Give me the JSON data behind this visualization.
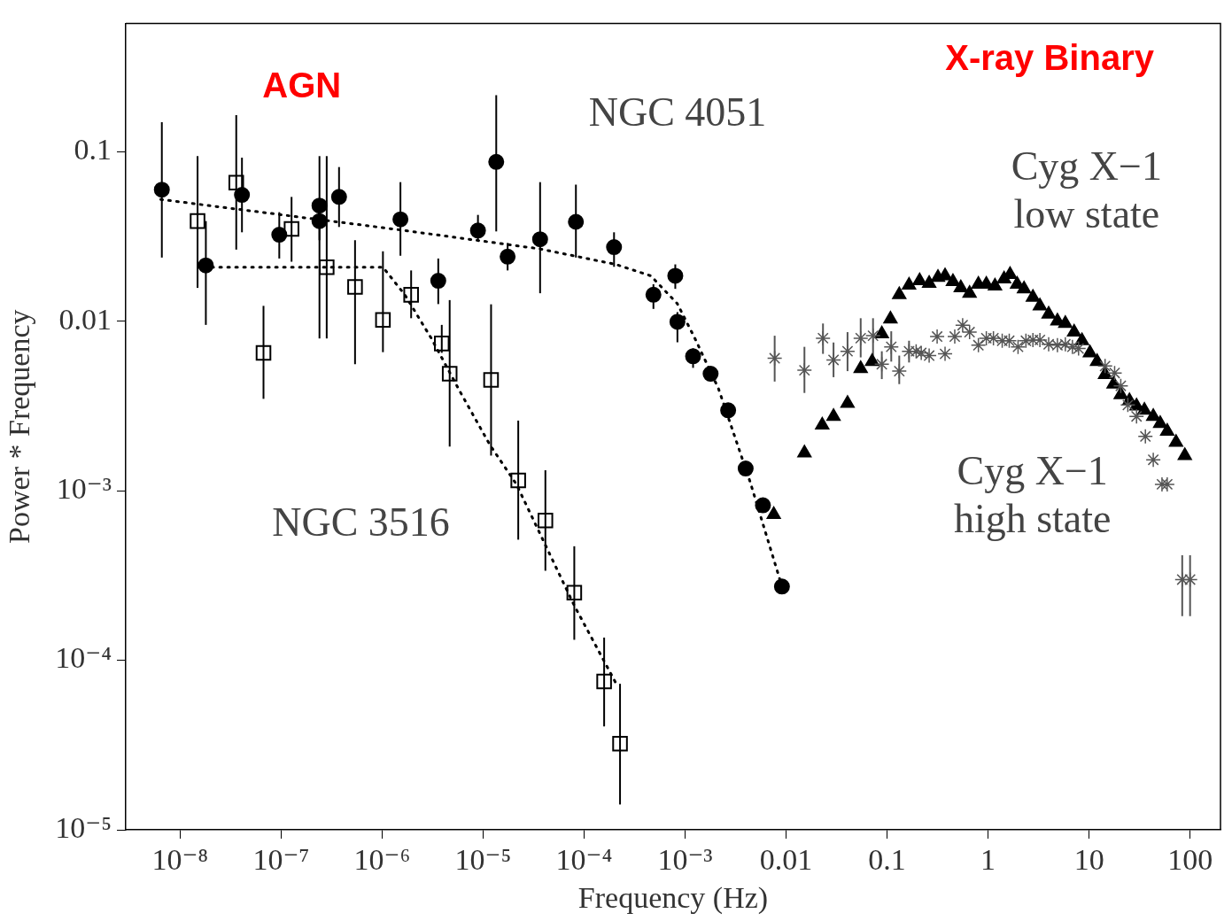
{
  "chart_data": {
    "type": "scatter",
    "xlabel": "Frequency (Hz)",
    "ylabel": "Power * Frequency",
    "log": "xy",
    "grid": false,
    "legend": false,
    "xlim": [
      2.9e-09,
      200
    ],
    "ylim": [
      1e-05,
      0.57
    ],
    "xticks": [
      {
        "value": 1e-08,
        "label": "10⁻⁸"
      },
      {
        "value": 1e-07,
        "label": "10⁻⁷"
      },
      {
        "value": 1e-06,
        "label": "10⁻⁶"
      },
      {
        "value": 1e-05,
        "label": "10⁻⁵"
      },
      {
        "value": 0.0001,
        "label": "10⁻⁴"
      },
      {
        "value": 0.001,
        "label": "10⁻³"
      },
      0.01,
      0.1,
      1,
      10,
      100
    ],
    "yticks": [
      {
        "value": 1e-05,
        "label": "10⁻⁵"
      },
      {
        "value": 0.0001,
        "label": "10⁻⁴"
      },
      {
        "value": 0.001,
        "label": "10⁻³"
      },
      0.01,
      0.1
    ],
    "annotations": [
      "AGN",
      "X-ray Binary"
    ],
    "series": [
      {
        "name": "NGC 4051",
        "marker": "circle",
        "color": "#000000",
        "x": [
          6.6e-09,
          1.8e-08,
          4.1e-08,
          9.6e-08,
          2.4e-07,
          2.4e-07,
          3.75e-07,
          1.52e-06,
          3.6e-06,
          8.9e-06,
          1.35e-05,
          1.75e-05,
          3.67e-05,
          8.3e-05,
          0.000198,
          0.000486,
          0.0008,
          0.00084,
          0.0012,
          0.00179,
          0.00267,
          0.00398,
          0.0059,
          0.0091
        ],
        "values": [
          0.0596,
          0.0213,
          0.0555,
          0.0323,
          0.048,
          0.0389,
          0.054,
          0.0398,
          0.0173,
          0.0342,
          0.0869,
          0.024,
          0.0304,
          0.0385,
          0.0273,
          0.0143,
          0.0185,
          0.0099,
          0.0062,
          0.00489,
          0.00298,
          0.00135,
          0.00082,
          0.000272
        ],
        "errors": [
          [
            0.0237,
            0.149
          ],
          [
            0.0095,
            0.0389
          ],
          [
            0.0334,
            0.092
          ],
          [
            0.0234,
            0.0439
          ],
          [
            0.03,
            0.094
          ],
          [
            0.0079,
            0.0389
          ],
          [
            0.0359,
            0.081
          ],
          [
            0.0243,
            0.066
          ],
          [
            0.0126,
            0.0234
          ],
          [
            0.03,
            0.0423
          ],
          [
            0.0338,
            0.215
          ],
          [
            0.0199,
            0.0289
          ],
          [
            0.0146,
            0.066
          ],
          [
            0.0237,
            0.0638
          ],
          [
            0.0209,
            0.0334
          ],
          [
            0.0118,
            0.0165
          ],
          [
            0.0155,
            0.0216
          ],
          [
            0.0075,
            0.0113
          ],
          [
            0.0053,
            0.0069
          ],
          [
            0.0044,
            0.0054
          ],
          null,
          null,
          null,
          null
        ]
      },
      {
        "type": "line",
        "marker": "none",
        "line_style": "dotted",
        "color": "#000000",
        "x": [
          6.44e-09,
          1.46e-06,
          3.6e-05,
          0.000206,
          0.000458,
          0.000836,
          0.00125,
          0.00214,
          0.0044,
          0.00906
        ],
        "values": [
          0.0522,
          0.0346,
          0.0267,
          0.0216,
          0.0185,
          0.0127,
          0.00792,
          0.004,
          0.00113,
          0.000275
        ]
      },
      {
        "name": "NGC 3516",
        "marker": "square",
        "color": "#000000",
        "x": [
          1.49e-08,
          3.6e-08,
          6.7e-08,
          1.27e-07,
          2.83e-07,
          5.4e-07,
          1.02e-06,
          1.94e-06,
          3.9e-06,
          4.67e-06,
          1.2e-05,
          2.23e-05,
          4.14e-05,
          8e-05,
          0.000158,
          0.000227
        ],
        "values": [
          0.0389,
          0.0655,
          0.00649,
          0.035,
          0.0208,
          0.0159,
          0.01016,
          0.0143,
          0.00738,
          0.00489,
          0.0045,
          0.00115,
          0.000667,
          0.00025,
          7.5e-05,
          3.22e-05
        ],
        "errors": [
          [
            0.0157,
            0.094
          ],
          [
            0.0264,
            0.164
          ],
          [
            0.00348,
            0.0123
          ],
          [
            0.0224,
            0.054
          ],
          [
            0.0079,
            0.094
          ],
          [
            0.00557,
            0.03
          ],
          [
            0.00656,
            0.0258
          ],
          [
            0.0104,
            0.0199
          ],
          [
            0.0065,
            0.0095
          ],
          [
            0.00182,
            0.0133
          ],
          [
            0.00161,
            0.01256
          ],
          [
            0.000514,
            0.00259
          ],
          [
            0.000337,
            0.00132
          ],
          [
            0.000132,
            0.00047
          ],
          [
            4.07e-05,
            0.000136
          ],
          [
            1.41e-05,
            7.26e-05
          ]
        ]
      },
      {
        "type": "line",
        "marker": "none",
        "line_style": "dotted",
        "color": "#000000",
        "x": [
          2.06e-08,
          1.02e-06,
          1.68e-06,
          3.07e-06,
          5.94e-06,
          1.17e-05,
          2.14e-05,
          8e-05,
          0.000206
        ],
        "values": [
          0.0208,
          0.0208,
          0.0143,
          0.00792,
          0.00382,
          0.00186,
          0.00109,
          0.00021,
          7.35e-05
        ]
      },
      {
        "name": "Cyg X−1 low state",
        "marker": "triangle",
        "color": "#000000",
        "x": [
          0.00755,
          0.0152,
          0.0228,
          0.0295,
          0.0406,
          0.0548,
          0.0711,
          0.0887,
          0.108,
          0.132,
          0.165,
          0.21,
          0.261,
          0.319,
          0.375,
          0.449,
          0.537,
          0.656,
          0.802,
          0.961,
          1.17,
          1.44,
          1.65,
          1.94,
          2.27,
          2.78,
          3.26,
          3.98,
          4.86,
          5.82,
          7.11,
          8.51,
          10.2,
          12.0,
          14.4,
          17.5,
          20.6,
          25.1,
          29.5,
          35.3,
          43.2,
          50.6,
          59.4,
          72.6,
          88.7
        ],
        "values": [
          0.000724,
          0.00167,
          0.00244,
          0.00274,
          0.00327,
          0.00525,
          0.00577,
          0.00841,
          0.0103,
          0.0143,
          0.0163,
          0.0173,
          0.0167,
          0.0181,
          0.0185,
          0.0171,
          0.0157,
          0.0146,
          0.0165,
          0.0165,
          0.0161,
          0.0177,
          0.0188,
          0.0165,
          0.0155,
          0.0138,
          0.0123,
          0.011,
          0.01,
          0.00968,
          0.00861,
          0.00766,
          0.00649,
          0.00577,
          0.00483,
          0.00425,
          0.00368,
          0.00339,
          0.00316,
          0.00298,
          0.00274,
          0.00249,
          0.00224,
          0.00193,
          0.00161
        ]
      },
      {
        "name": "Cyg X−1 high state",
        "marker": "cross",
        "color": "#555555",
        "x": [
          0.00771,
          0.0152,
          0.0232,
          0.0295,
          0.0406,
          0.0548,
          0.0726,
          0.0887,
          0.11,
          0.132,
          0.165,
          0.194,
          0.218,
          0.261,
          0.313,
          0.375,
          0.468,
          0.56,
          0.656,
          0.802,
          0.961,
          1.13,
          1.38,
          1.62,
          1.98,
          2.37,
          2.78,
          3.26,
          3.98,
          4.86,
          5.82,
          6.84,
          7.87,
          14.4,
          17.9,
          20.6,
          24.2,
          29.5,
          36.1,
          43.2,
          52.7,
          59.4,
          83.6,
          100
        ],
        "values": [
          0.00604,
          0.00513,
          0.00793,
          0.0059,
          0.00664,
          0.00793,
          0.0082,
          0.00557,
          0.00705,
          0.00507,
          0.00664,
          0.00664,
          0.00649,
          0.00626,
          0.00811,
          0.00641,
          0.00811,
          0.00946,
          0.00861,
          0.00721,
          0.00793,
          0.00793,
          0.00766,
          0.00766,
          0.00705,
          0.00766,
          0.00774,
          0.00774,
          0.0073,
          0.00721,
          0.0073,
          0.00705,
          0.00689,
          0.00543,
          0.00494,
          0.00415,
          0.0032,
          0.00274,
          0.00209,
          0.00152,
          0.00109,
          0.00109,
          0.000299,
          0.000299
        ],
        "errors": [
          [
            0.0044,
            0.0082
          ],
          [
            0.00377,
            0.00705
          ],
          [
            0.00641,
            0.00968
          ],
          [
            0.00467,
            0.00748
          ],
          [
            0.00507,
            0.00861
          ],
          [
            0.00611,
            0.0104
          ],
          [
            0.00626,
            0.0104
          ],
          [
            0.00455,
            0.00664
          ],
          [
            0.00577,
            0.00871
          ],
          [
            0.00425,
            0.00626
          ],
          [
            0.0057,
            0.00766
          ],
          null,
          null,
          null,
          null,
          null,
          null,
          null,
          null,
          null,
          null,
          null,
          null,
          null,
          null,
          null,
          null,
          null,
          null,
          null,
          null,
          null,
          null,
          null,
          null,
          null,
          null,
          null,
          null,
          null,
          null,
          null,
          [
            0.000182,
            0.000416
          ],
          [
            0.000182,
            0.000416
          ]
        ]
      }
    ]
  }
}
